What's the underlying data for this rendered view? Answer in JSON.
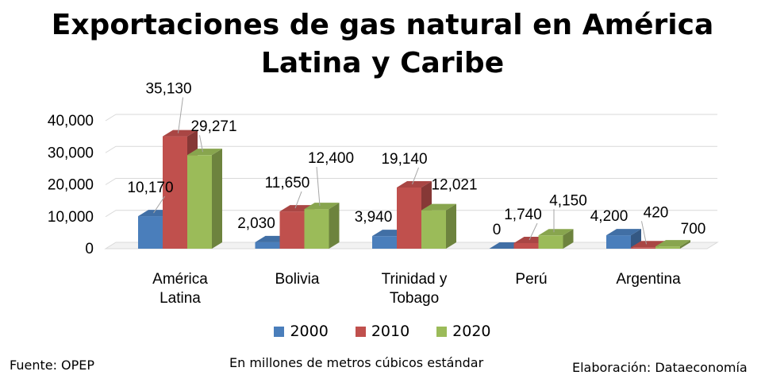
{
  "chart_data": {
    "type": "bar",
    "title": "Exportaciones de gas natural en América Latina y Caribe",
    "categories": [
      "América Latina",
      "Bolivia",
      "Trinidad y Tobago",
      "Perú",
      "Argentina"
    ],
    "series": [
      {
        "name": "2000",
        "color": "#4a7ebb",
        "values": [
          10170,
          2030,
          3940,
          0,
          4200
        ],
        "labels": [
          "10,170",
          "2,030",
          "3,940",
          "0",
          "4,200"
        ]
      },
      {
        "name": "2010",
        "color": "#c0504d",
        "values": [
          35130,
          11650,
          19140,
          1740,
          420
        ],
        "labels": [
          "35,130",
          "11,650",
          "19,140",
          "1,740",
          "420"
        ]
      },
      {
        "name": "2020",
        "color": "#9bbb59",
        "values": [
          29271,
          12400,
          12021,
          4150,
          700
        ],
        "labels": [
          "29,271",
          "12,400",
          "12,021",
          "4,150",
          "700"
        ]
      }
    ],
    "yticks": [
      "0",
      "10,000",
      "20,000",
      "30,000",
      "40,000"
    ],
    "ylim": [
      0,
      40000
    ],
    "grid": true,
    "legend": "bottom",
    "three_d": true
  },
  "footer": {
    "source": "Fuente: OPEP",
    "unit": "En millones de metros cúbicos estándar",
    "credit": "Elaboración: Dataeconomía"
  }
}
